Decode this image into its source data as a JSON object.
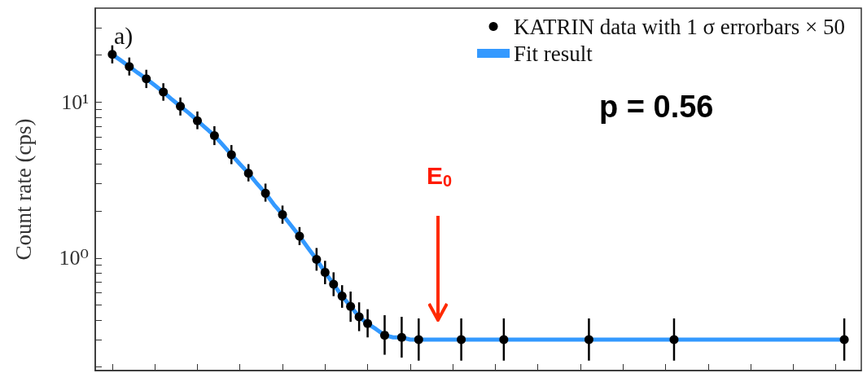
{
  "chart_data": {
    "type": "scatter",
    "ylabel": "Count rate (cps)",
    "log": "y",
    "categories": [
      null,
      null,
      null,
      null,
      null,
      null,
      null,
      null,
      null,
      null,
      null,
      null,
      null,
      null,
      null,
      null,
      null,
      null,
      null,
      null,
      null,
      null,
      null,
      null,
      null,
      null,
      null,
      null,
      null,
      null,
      null,
      null,
      null,
      null,
      null,
      null,
      null,
      null,
      null,
      null,
      null,
      null,
      null,
      null,
      null,
      null,
      null,
      null,
      null,
      null,
      null,
      null,
      null,
      null,
      null,
      null,
      null,
      null,
      null,
      null,
      null,
      null,
      null,
      null,
      null,
      null,
      null,
      null,
      null,
      null,
      null,
      null,
      null,
      null,
      null,
      null,
      null,
      null,
      null,
      null,
      null,
      null,
      null,
      null,
      null,
      null,
      null,
      null,
      null,
      null,
      null
    ],
    "ylim": [
      0.19,
      40
    ],
    "yticks": [
      {
        "value": 0.2,
        "label": null
      },
      {
        "value": 0.3,
        "label": null
      },
      {
        "value": 0.4,
        "label": null
      },
      {
        "value": 0.5,
        "label": null
      },
      {
        "value": 0.6,
        "label": null
      },
      {
        "value": 0.7,
        "label": null
      },
      {
        "value": 0.8,
        "label": null
      },
      {
        "value": 0.9,
        "label": null
      },
      {
        "value": 1,
        "label": "10⁰"
      },
      {
        "value": 2,
        "label": null
      },
      {
        "value": 3,
        "label": null
      },
      {
        "value": 4,
        "label": null
      },
      {
        "value": 5,
        "label": null
      },
      {
        "value": 6,
        "label": null
      },
      {
        "value": 7,
        "label": null
      },
      {
        "value": 8,
        "label": null
      },
      {
        "value": 9,
        "label": null
      },
      {
        "value": 10,
        "label": "10¹"
      },
      {
        "value": 20,
        "label": null
      },
      {
        "value": 30,
        "label": null
      }
    ],
    "tick_labels": "y",
    "grid": false,
    "legend": "top right",
    "series": [
      {
        "name": "KATRIN data with 1 σ errorbars × 50",
        "color": "#000000",
        "marker": "circle",
        "values": [
          null,
          null,
          20.2,
          null,
          16.9,
          null,
          14.1,
          null,
          11.6,
          null,
          9.4,
          null,
          7.6,
          null,
          6.1,
          null,
          4.6,
          null,
          3.5,
          null,
          2.6,
          null,
          1.9,
          null,
          1.38,
          null,
          0.98,
          0.81,
          0.68,
          0.57,
          0.49,
          0.42,
          0.38,
          null,
          0.32,
          null,
          0.31,
          null,
          0.3,
          null,
          null,
          null,
          null,
          0.3,
          null,
          null,
          null,
          null,
          0.3,
          null,
          null,
          null,
          null,
          null,
          null,
          null,
          null,
          null,
          0.3,
          null,
          null,
          null,
          null,
          null,
          null,
          null,
          null,
          null,
          0.3,
          null,
          null,
          null,
          null,
          null,
          null,
          null,
          null,
          null,
          null,
          null,
          null,
          null,
          null,
          null,
          null,
          null,
          null,
          null,
          0.3,
          null,
          null
        ],
        "errors": [
          null,
          null,
          [
            17.7,
            23.1
          ],
          null,
          [
            14.8,
            19.3
          ],
          null,
          [
            12.3,
            16.1
          ],
          null,
          [
            10.2,
            13.2
          ],
          null,
          [
            8.2,
            10.7
          ],
          null,
          [
            6.7,
            8.7
          ],
          null,
          [
            5.3,
            7.0
          ],
          null,
          [
            4.0,
            5.3
          ],
          null,
          [
            3.1,
            4.0
          ],
          null,
          [
            2.3,
            3.0
          ],
          null,
          [
            1.66,
            2.17
          ],
          null,
          [
            1.21,
            1.58
          ],
          null,
          [
            0.83,
            1.16
          ],
          [
            0.68,
            0.96
          ],
          [
            0.57,
            0.81
          ],
          [
            0.48,
            0.67
          ],
          [
            0.39,
            0.61
          ],
          [
            0.34,
            0.52
          ],
          [
            0.31,
            0.47
          ],
          null,
          [
            0.24,
            0.43
          ],
          null,
          [
            0.23,
            0.42
          ],
          null,
          [
            0.22,
            0.41
          ],
          null,
          null,
          null,
          null,
          [
            0.22,
            0.41
          ],
          null,
          null,
          null,
          null,
          [
            0.22,
            0.41
          ],
          null,
          null,
          null,
          null,
          null,
          null,
          null,
          null,
          null,
          [
            0.22,
            0.41
          ],
          null,
          null,
          null,
          null,
          null,
          null,
          null,
          null,
          null,
          [
            0.22,
            0.41
          ],
          null,
          null,
          null,
          null,
          null,
          null,
          null,
          null,
          null,
          null,
          null,
          null,
          null,
          null,
          null,
          null,
          null,
          null,
          null,
          [
            0.22,
            0.41
          ],
          null,
          null
        ]
      },
      {
        "name": "Fit result",
        "type": "line",
        "color": "#3399ff",
        "line_style": "solid",
        "marker": "none",
        "values": [
          null,
          null,
          20.2,
          18.5,
          16.9,
          15.4,
          14.1,
          12.8,
          11.6,
          10.4,
          9.4,
          8.5,
          7.6,
          6.8,
          6.1,
          5.3,
          4.6,
          4.0,
          3.5,
          3.0,
          2.6,
          2.2,
          1.9,
          1.62,
          1.38,
          1.16,
          0.98,
          0.81,
          0.68,
          0.57,
          0.49,
          0.42,
          0.38,
          0.35,
          0.32,
          0.31,
          0.31,
          0.3,
          0.3,
          0.3,
          0.3,
          0.3,
          0.3,
          0.3,
          0.3,
          0.3,
          0.3,
          0.3,
          0.3,
          0.3,
          0.3,
          0.3,
          0.3,
          0.3,
          0.3,
          0.3,
          0.3,
          0.3,
          0.3,
          0.3,
          0.3,
          0.3,
          0.3,
          0.3,
          0.3,
          0.3,
          0.3,
          0.3,
          0.3,
          0.3,
          0.3,
          0.3,
          0.3,
          0.3,
          0.3,
          0.3,
          0.3,
          0.3,
          0.3,
          0.3,
          0.3,
          0.3,
          0.3,
          0.3,
          0.3,
          0.3,
          0.3,
          0.3,
          0.3,
          null,
          null
        ]
      }
    ],
    "annotations": [
      "a)",
      "p = 0.56",
      "E$_{0}$"
    ]
  }
}
